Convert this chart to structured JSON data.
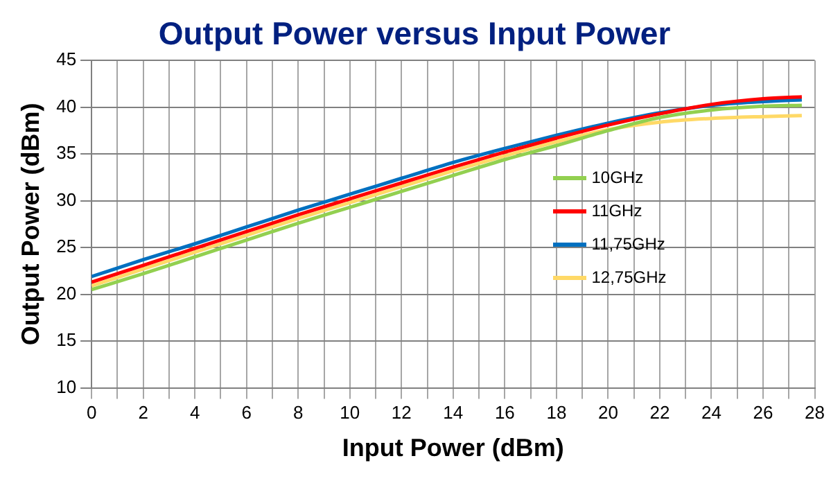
{
  "chart_data": {
    "type": "line",
    "title": "Output Power versus Input Power",
    "xlabel": "Input Power (dBm)",
    "ylabel": "Output Power (dBm)",
    "x": [
      0,
      2,
      4,
      6,
      8,
      10,
      12,
      14,
      16,
      18,
      20,
      22,
      24,
      26,
      27.5
    ],
    "series": [
      {
        "name": "10GHz",
        "color": "#92d050",
        "values": [
          20.5,
          22.2,
          24.0,
          25.8,
          27.6,
          29.3,
          31.0,
          32.7,
          34.4,
          35.9,
          37.5,
          38.9,
          39.7,
          40.1,
          40.2
        ]
      },
      {
        "name": "11GHz",
        "color": "#ff0000",
        "values": [
          21.3,
          23.1,
          24.9,
          26.7,
          28.5,
          30.2,
          31.9,
          33.6,
          35.2,
          36.7,
          38.1,
          39.3,
          40.3,
          40.9,
          41.1
        ]
      },
      {
        "name": "11,75GHz",
        "color": "#0070c0",
        "values": [
          21.9,
          23.7,
          25.4,
          27.2,
          29.0,
          30.7,
          32.4,
          34.1,
          35.6,
          37.0,
          38.3,
          39.4,
          40.2,
          40.6,
          40.8
        ]
      },
      {
        "name": "12,75GHz",
        "color": "#ffd966",
        "values": [
          20.9,
          22.7,
          24.5,
          26.3,
          28.1,
          29.8,
          31.5,
          33.2,
          34.8,
          36.3,
          37.6,
          38.4,
          38.8,
          39.0,
          39.1
        ]
      }
    ],
    "xlim": [
      0,
      28
    ],
    "xticks": [
      0,
      {
        "value": 1,
        "label": null
      },
      2,
      {
        "value": 3,
        "label": null
      },
      4,
      {
        "value": 5,
        "label": null
      },
      6,
      {
        "value": 7,
        "label": null
      },
      8,
      {
        "value": 9,
        "label": null
      },
      10,
      {
        "value": 11,
        "label": null
      },
      12,
      {
        "value": 13,
        "label": null
      },
      14,
      {
        "value": 15,
        "label": null
      },
      16,
      {
        "value": 17,
        "label": null
      },
      18,
      {
        "value": 19,
        "label": null
      },
      20,
      {
        "value": 21,
        "label": null
      },
      22,
      {
        "value": 23,
        "label": null
      },
      24,
      {
        "value": 25,
        "label": null
      },
      26,
      {
        "value": 27,
        "label": null
      },
      28
    ],
    "ylim": [
      10,
      45
    ],
    "yticks": [
      10,
      15,
      20,
      25,
      30,
      35,
      40,
      45
    ],
    "grid": true,
    "legend": "right",
    "marker": "none",
    "line_style": "solid"
  }
}
